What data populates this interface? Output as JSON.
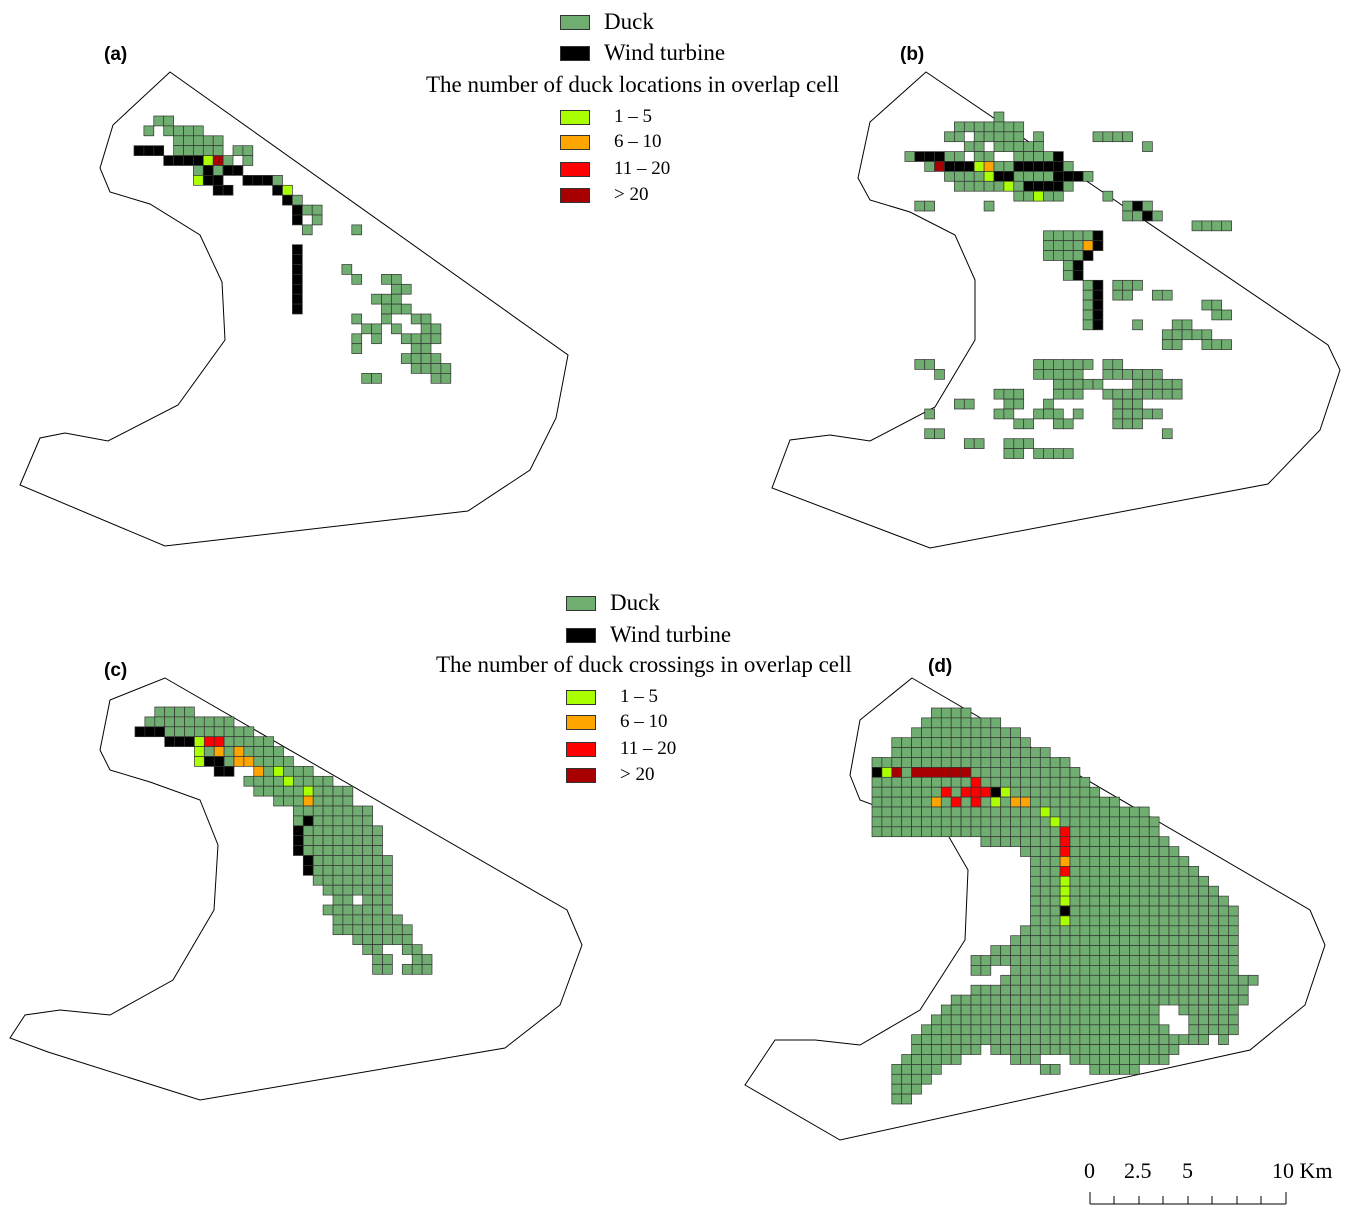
{
  "colors": {
    "duck": "#6fad70",
    "wind_turbine": "#000000",
    "class_1_5": "#aaff00",
    "class_6_10": "#ffa500",
    "class_11_20": "#ff0000",
    "class_gt_20": "#a80000",
    "outline": "#000000",
    "cell_border": "#333333"
  },
  "panels": [
    {
      "id": "a",
      "label": "(a)"
    },
    {
      "id": "b",
      "label": "(b)"
    },
    {
      "id": "c",
      "label": "(c)"
    },
    {
      "id": "d",
      "label": "(d)"
    }
  ],
  "legend_top": {
    "duck_label": "Duck",
    "turbine_label": "Wind turbine",
    "title": "The number of duck locations in overlap cell",
    "classes": [
      "1 – 5",
      "6 – 10",
      "11 – 20",
      "> 20"
    ]
  },
  "legend_bottom": {
    "duck_label": "Duck",
    "turbine_label": "Wind turbine",
    "title": "The number of duck crossings in overlap cell",
    "classes": [
      "1 – 5",
      "6 – 10",
      "11 – 20",
      "> 20"
    ]
  },
  "scale_bar": {
    "labels": [
      "0",
      "2.5",
      "5",
      "10 Km"
    ],
    "values_km": [
      0,
      2.5,
      5,
      10
    ]
  }
}
